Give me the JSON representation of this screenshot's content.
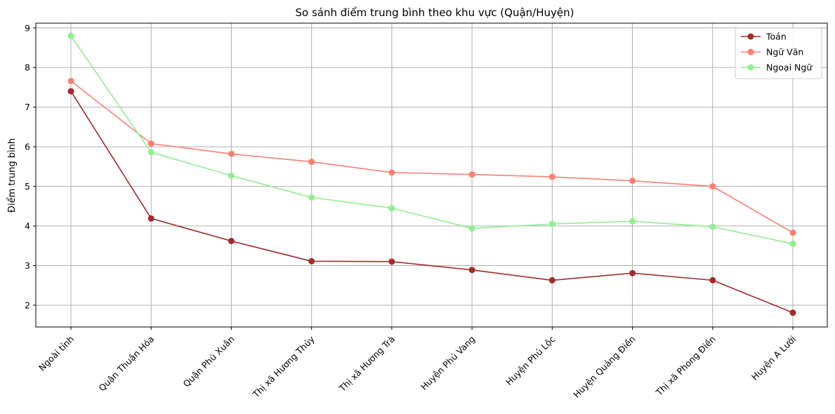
{
  "chart_data": {
    "type": "line",
    "title": "So sánh điểm trung bình theo khu vực (Quận/Huyện)",
    "xlabel": "",
    "ylabel": "Điểm trung bình",
    "categories": [
      "Ngoài tỉnh",
      "Quận Thuận Hóa",
      "Quận Phú Xuân",
      "Thị xã Hương Thủy",
      "Thị xã Hương Trà",
      "Huyện Phú Vang",
      "Huyện Phú Lộc",
      "Huyện Quảng Điền",
      "Thị xã Phong Điền",
      "Huyện A Lưới"
    ],
    "ylim": [
      1.45,
      9.12
    ],
    "yticks": [
      2,
      3,
      4,
      5,
      6,
      7,
      8,
      9
    ],
    "grid": true,
    "legend_position": "top-right",
    "series": [
      {
        "name": "Toán",
        "color": "#a52a2a",
        "values": [
          7.4,
          4.19,
          3.62,
          3.11,
          3.1,
          2.89,
          2.63,
          2.81,
          2.63,
          1.81
        ]
      },
      {
        "name": "Ngữ Văn",
        "color": "#fa8072",
        "values": [
          7.66,
          6.08,
          5.82,
          5.62,
          5.35,
          5.3,
          5.24,
          5.14,
          5.0,
          3.83
        ]
      },
      {
        "name": "Ngoại Ngữ",
        "color": "#90ee90",
        "values": [
          8.8,
          5.86,
          5.27,
          4.72,
          4.45,
          3.94,
          4.05,
          4.12,
          3.98,
          3.55
        ]
      }
    ]
  }
}
